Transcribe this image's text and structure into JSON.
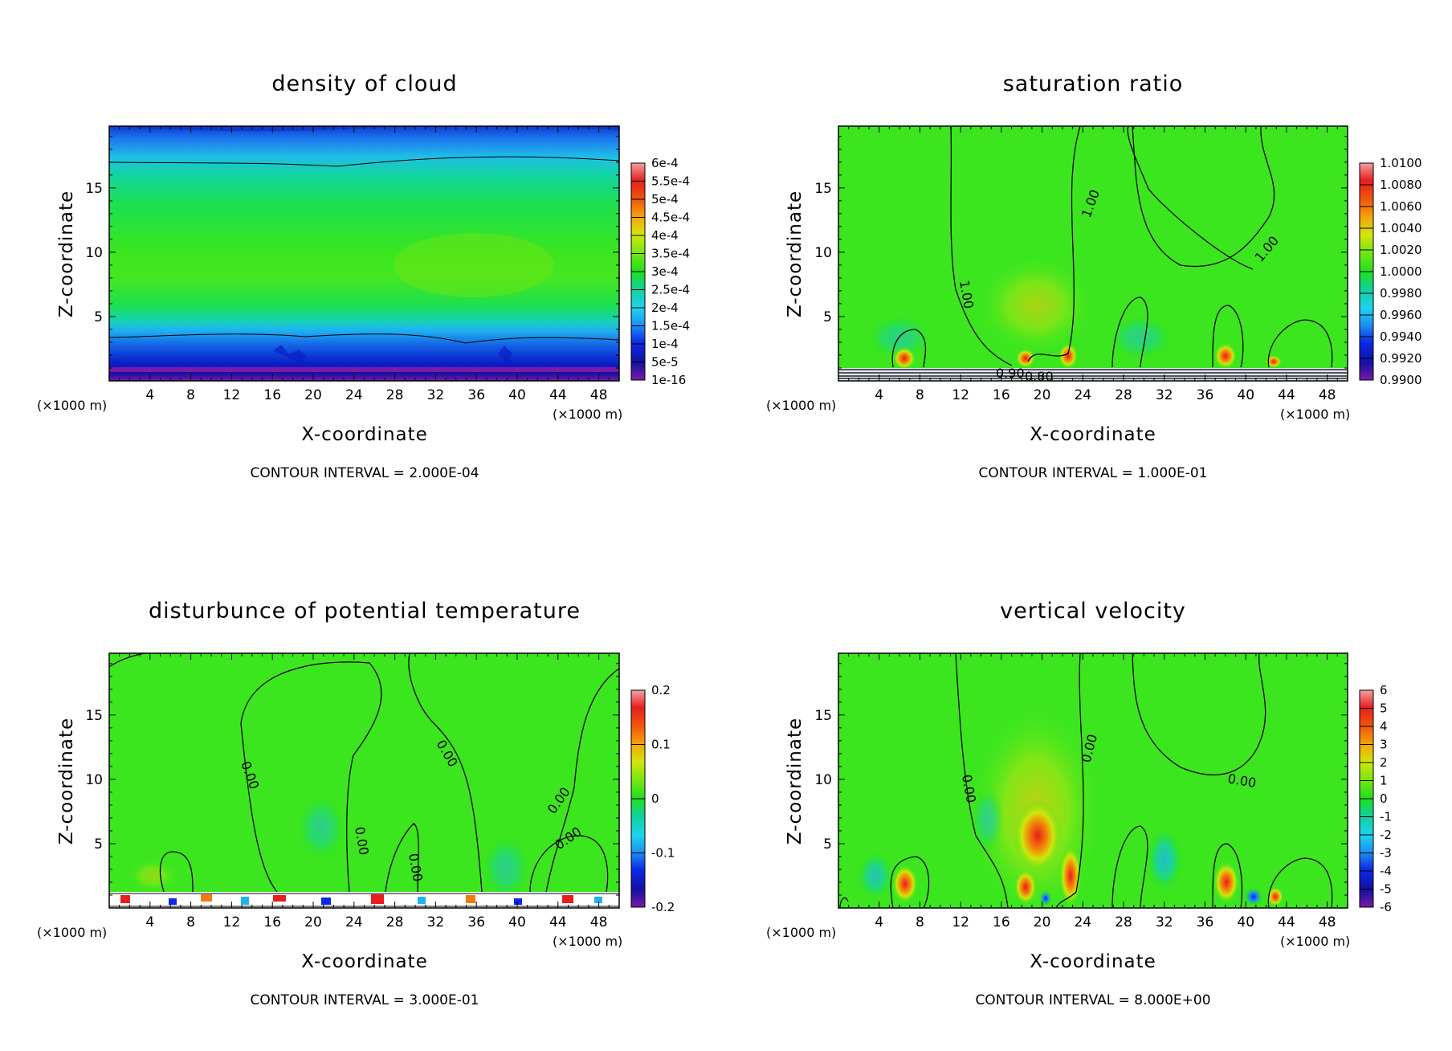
{
  "chart_data": [
    {
      "type": "heatmap",
      "title": "density of cloud",
      "xlabel": "X-coordinate",
      "ylabel": "Z-coordinate",
      "x_unit": "(×1000 m)",
      "z_unit": "(×1000 m)",
      "xlim": [
        0,
        50
      ],
      "ylim": [
        0,
        19.8
      ],
      "x_ticks": [
        "4",
        "8",
        "12",
        "16",
        "20",
        "24",
        "28",
        "32",
        "36",
        "40",
        "44",
        "48"
      ],
      "y_ticks": [
        "5",
        "10",
        "15"
      ],
      "colorbar": [
        "1e-16",
        "5e-5",
        "1e-4",
        "1.5e-4",
        "2e-4",
        "2.5e-4",
        "3e-4",
        "3.5e-4",
        "4e-4",
        "4.5e-4",
        "5e-4",
        "5.5e-4",
        "6e-4"
      ],
      "contour_interval": "CONTOUR INTERVAL = 2.000E-04",
      "contour_labels": []
    },
    {
      "type": "heatmap",
      "title": "saturation ratio",
      "xlabel": "X-coordinate",
      "ylabel": "Z-coordinate",
      "x_unit": "(×1000 m)",
      "z_unit": "(×1000 m)",
      "xlim": [
        0,
        50
      ],
      "ylim": [
        0,
        19.8
      ],
      "x_ticks": [
        "4",
        "8",
        "12",
        "16",
        "20",
        "24",
        "28",
        "32",
        "36",
        "40",
        "44",
        "48"
      ],
      "y_ticks": [
        "5",
        "10",
        "15"
      ],
      "colorbar": [
        "0.9900",
        "0.9920",
        "0.9940",
        "0.9960",
        "0.9980",
        "1.0000",
        "1.0020",
        "1.0040",
        "1.0060",
        "1.0080",
        "1.0100"
      ],
      "contour_interval": "CONTOUR INTERVAL = 1.000E-01",
      "contour_labels": [
        "1.00",
        "1.00",
        "1.00",
        "0.90",
        "0.80"
      ]
    },
    {
      "type": "heatmap",
      "title": "disturbunce of potential temperature",
      "xlabel": "X-coordinate",
      "ylabel": "Z-coordinate",
      "x_unit": "(×1000 m)",
      "z_unit": "(×1000 m)",
      "xlim": [
        0,
        50
      ],
      "ylim": [
        0,
        19.8
      ],
      "x_ticks": [
        "4",
        "8",
        "12",
        "16",
        "20",
        "24",
        "28",
        "32",
        "36",
        "40",
        "44",
        "48"
      ],
      "y_ticks": [
        "5",
        "10",
        "15"
      ],
      "colorbar": [
        "-0.2",
        "-0.1",
        "0",
        "0.1",
        "0.2"
      ],
      "contour_interval": "CONTOUR INTERVAL = 3.000E-01",
      "contour_labels": [
        "0.00",
        "0.00",
        "0.00",
        "0.00",
        "0.00",
        "0.00"
      ]
    },
    {
      "type": "heatmap",
      "title": "vertical velocity",
      "xlabel": "X-coordinate",
      "ylabel": "Z-coordinate",
      "x_unit": "(×1000 m)",
      "z_unit": "(×1000 m)",
      "xlim": [
        0,
        50
      ],
      "ylim": [
        0,
        19.8
      ],
      "x_ticks": [
        "4",
        "8",
        "12",
        "16",
        "20",
        "24",
        "28",
        "32",
        "36",
        "40",
        "44",
        "48"
      ],
      "y_ticks": [
        "5",
        "10",
        "15"
      ],
      "colorbar": [
        "-6",
        "-5",
        "-4",
        "-3",
        "-2",
        "-1",
        "0",
        "1",
        "2",
        "3",
        "4",
        "5",
        "6"
      ],
      "contour_interval": "CONTOUR INTERVAL = 8.000E+00",
      "contour_labels": [
        "0.00",
        "0.00",
        "0.00"
      ]
    }
  ]
}
